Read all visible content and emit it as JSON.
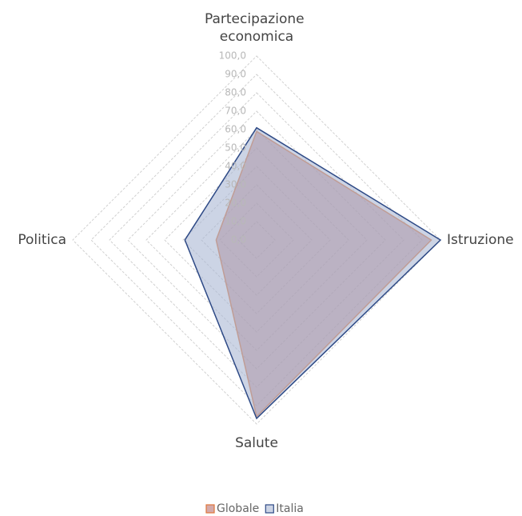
{
  "chart_data": {
    "type": "radar",
    "categories": [
      "Partecipazione economica",
      "Istruzione",
      "Salute",
      "Politica"
    ],
    "series": [
      {
        "name": "Globale",
        "color": "#e0763a",
        "fill": "rgba(176,100,100,0.55)",
        "values": [
          59,
          95,
          96,
          22
        ]
      },
      {
        "name": "Italia",
        "color": "#2e4a86",
        "fill": "rgba(170,184,212,0.6)",
        "values": [
          61,
          100,
          97,
          39
        ]
      }
    ],
    "ylim": [
      0,
      100
    ],
    "yticks": [
      {
        "value": 0,
        "label": "0,0"
      },
      {
        "value": 10,
        "label": "10,0"
      },
      {
        "value": 20,
        "label": "20,0"
      },
      {
        "value": 30,
        "label": "30,0"
      },
      {
        "value": 40,
        "label": "40,0"
      },
      {
        "value": 50,
        "label": "50,0"
      },
      {
        "value": 60,
        "label": "60,0"
      },
      {
        "value": 70,
        "label": "70,0"
      },
      {
        "value": 80,
        "label": "80,0"
      },
      {
        "value": 90,
        "label": "90,0"
      },
      {
        "value": 100,
        "label": "100,0"
      }
    ],
    "grid": true,
    "legend": "bottom"
  }
}
